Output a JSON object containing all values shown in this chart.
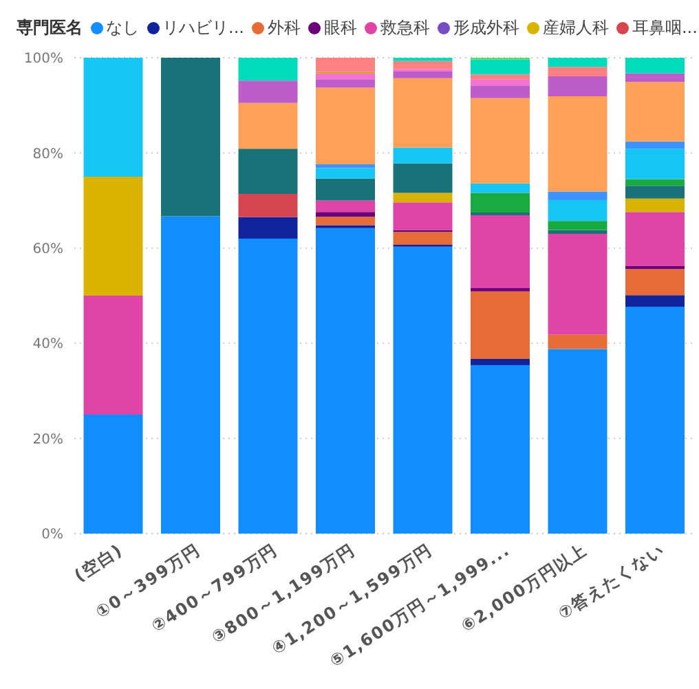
{
  "chart_data": {
    "type": "bar",
    "stacked": true,
    "legend_title": "専門医名",
    "legend": "top left",
    "grid": "y",
    "categories": [
      "(空白)",
      "①0～399万円",
      "②400～799万円",
      "③800～1,199万円",
      "④1,200～1,599万円",
      "⑤1,600万円～1,999...",
      "⑥2,000万円以上",
      "⑦答えたくない"
    ],
    "ylim": [
      0,
      100
    ],
    "yticks": [
      {
        "value": 0,
        "label": "0%"
      },
      {
        "value": 20,
        "label": "20%"
      },
      {
        "value": 40,
        "label": "40%"
      },
      {
        "value": 60,
        "label": "60%"
      },
      {
        "value": 80,
        "label": "80%"
      },
      {
        "value": 100,
        "label": "100%"
      }
    ],
    "series": [
      {
        "name": "なし",
        "color": "#118dff",
        "values": [
          25,
          66.7,
          62,
          64.2,
          60.3,
          35.4,
          38.8,
          47.7
        ]
      },
      {
        "name": "リハビリ...",
        "color": "#12239e",
        "values": [
          null,
          null,
          4.5,
          0.6,
          0.4,
          1.3,
          null,
          2.4
        ]
      },
      {
        "name": "外科",
        "color": "#e66c37",
        "values": [
          null,
          null,
          null,
          1.8,
          2.7,
          14.2,
          3.0,
          5.5
        ]
      },
      {
        "name": "眼科",
        "color": "#6b007b",
        "values": [
          null,
          null,
          null,
          1.0,
          0.4,
          0.7,
          null,
          0.6
        ]
      },
      {
        "name": "救急科",
        "color": "#e044a7",
        "values": [
          25,
          null,
          null,
          2.4,
          5.8,
          15.3,
          21.2,
          11.4
        ]
      },
      {
        "name": "形成外科",
        "color": "#744ec2",
        "values": [
          null,
          null,
          null,
          null,
          null,
          null,
          null,
          null
        ]
      },
      {
        "name": "産婦人科",
        "color": "#d9b300",
        "values": [
          25,
          null,
          null,
          null,
          2.0,
          null,
          null,
          2.8
        ]
      },
      {
        "name": "耳鼻咽...",
        "color": "#d64550",
        "values": [
          null,
          null,
          4.9,
          null,
          null,
          null,
          null,
          null
        ]
      },
      {
        "color": "#197278",
        "values": [
          null,
          33.3,
          9.5,
          4.6,
          6.2,
          0.6,
          0.8,
          2.7
        ]
      },
      {
        "color": "#1aab40",
        "values": [
          null,
          null,
          null,
          null,
          null,
          4.1,
          1.9,
          1.4
        ]
      },
      {
        "color": "#15c6f4",
        "values": [
          25,
          null,
          null,
          2.2,
          3.3,
          2.0,
          4.4,
          6.4
        ]
      },
      {
        "color": "#4092ff",
        "values": [
          null,
          null,
          null,
          0.8,
          null,
          null,
          1.8,
          1.5
        ]
      },
      {
        "color": "#ffa058",
        "values": [
          null,
          null,
          9.6,
          16.1,
          14.6,
          17.9,
          20.0,
          12.5
        ]
      },
      {
        "color": "#be5dc9",
        "values": [
          null,
          null,
          4.7,
          1.8,
          1.4,
          2.7,
          4.2,
          1.8
        ]
      },
      {
        "color": "#f472d0",
        "values": [
          null,
          null,
          null,
          1.2,
          0.5,
          1.3,
          null,
          null
        ]
      },
      {
        "color": "#c4a200",
        "values": [
          null,
          null,
          null,
          0.3,
          null,
          null,
          null,
          null
        ]
      },
      {
        "color": "#ff8080",
        "values": [
          null,
          null,
          null,
          3.0,
          1.7,
          1.0,
          2.0,
          null
        ]
      },
      {
        "color": "#00dbbc",
        "values": [
          null,
          null,
          4.8,
          null,
          0.7,
          3.1,
          1.9,
          3.3
        ]
      },
      {
        "color": "#5bd667",
        "values": [
          null,
          null,
          null,
          null,
          null,
          0.4,
          null,
          null
        ]
      }
    ]
  }
}
